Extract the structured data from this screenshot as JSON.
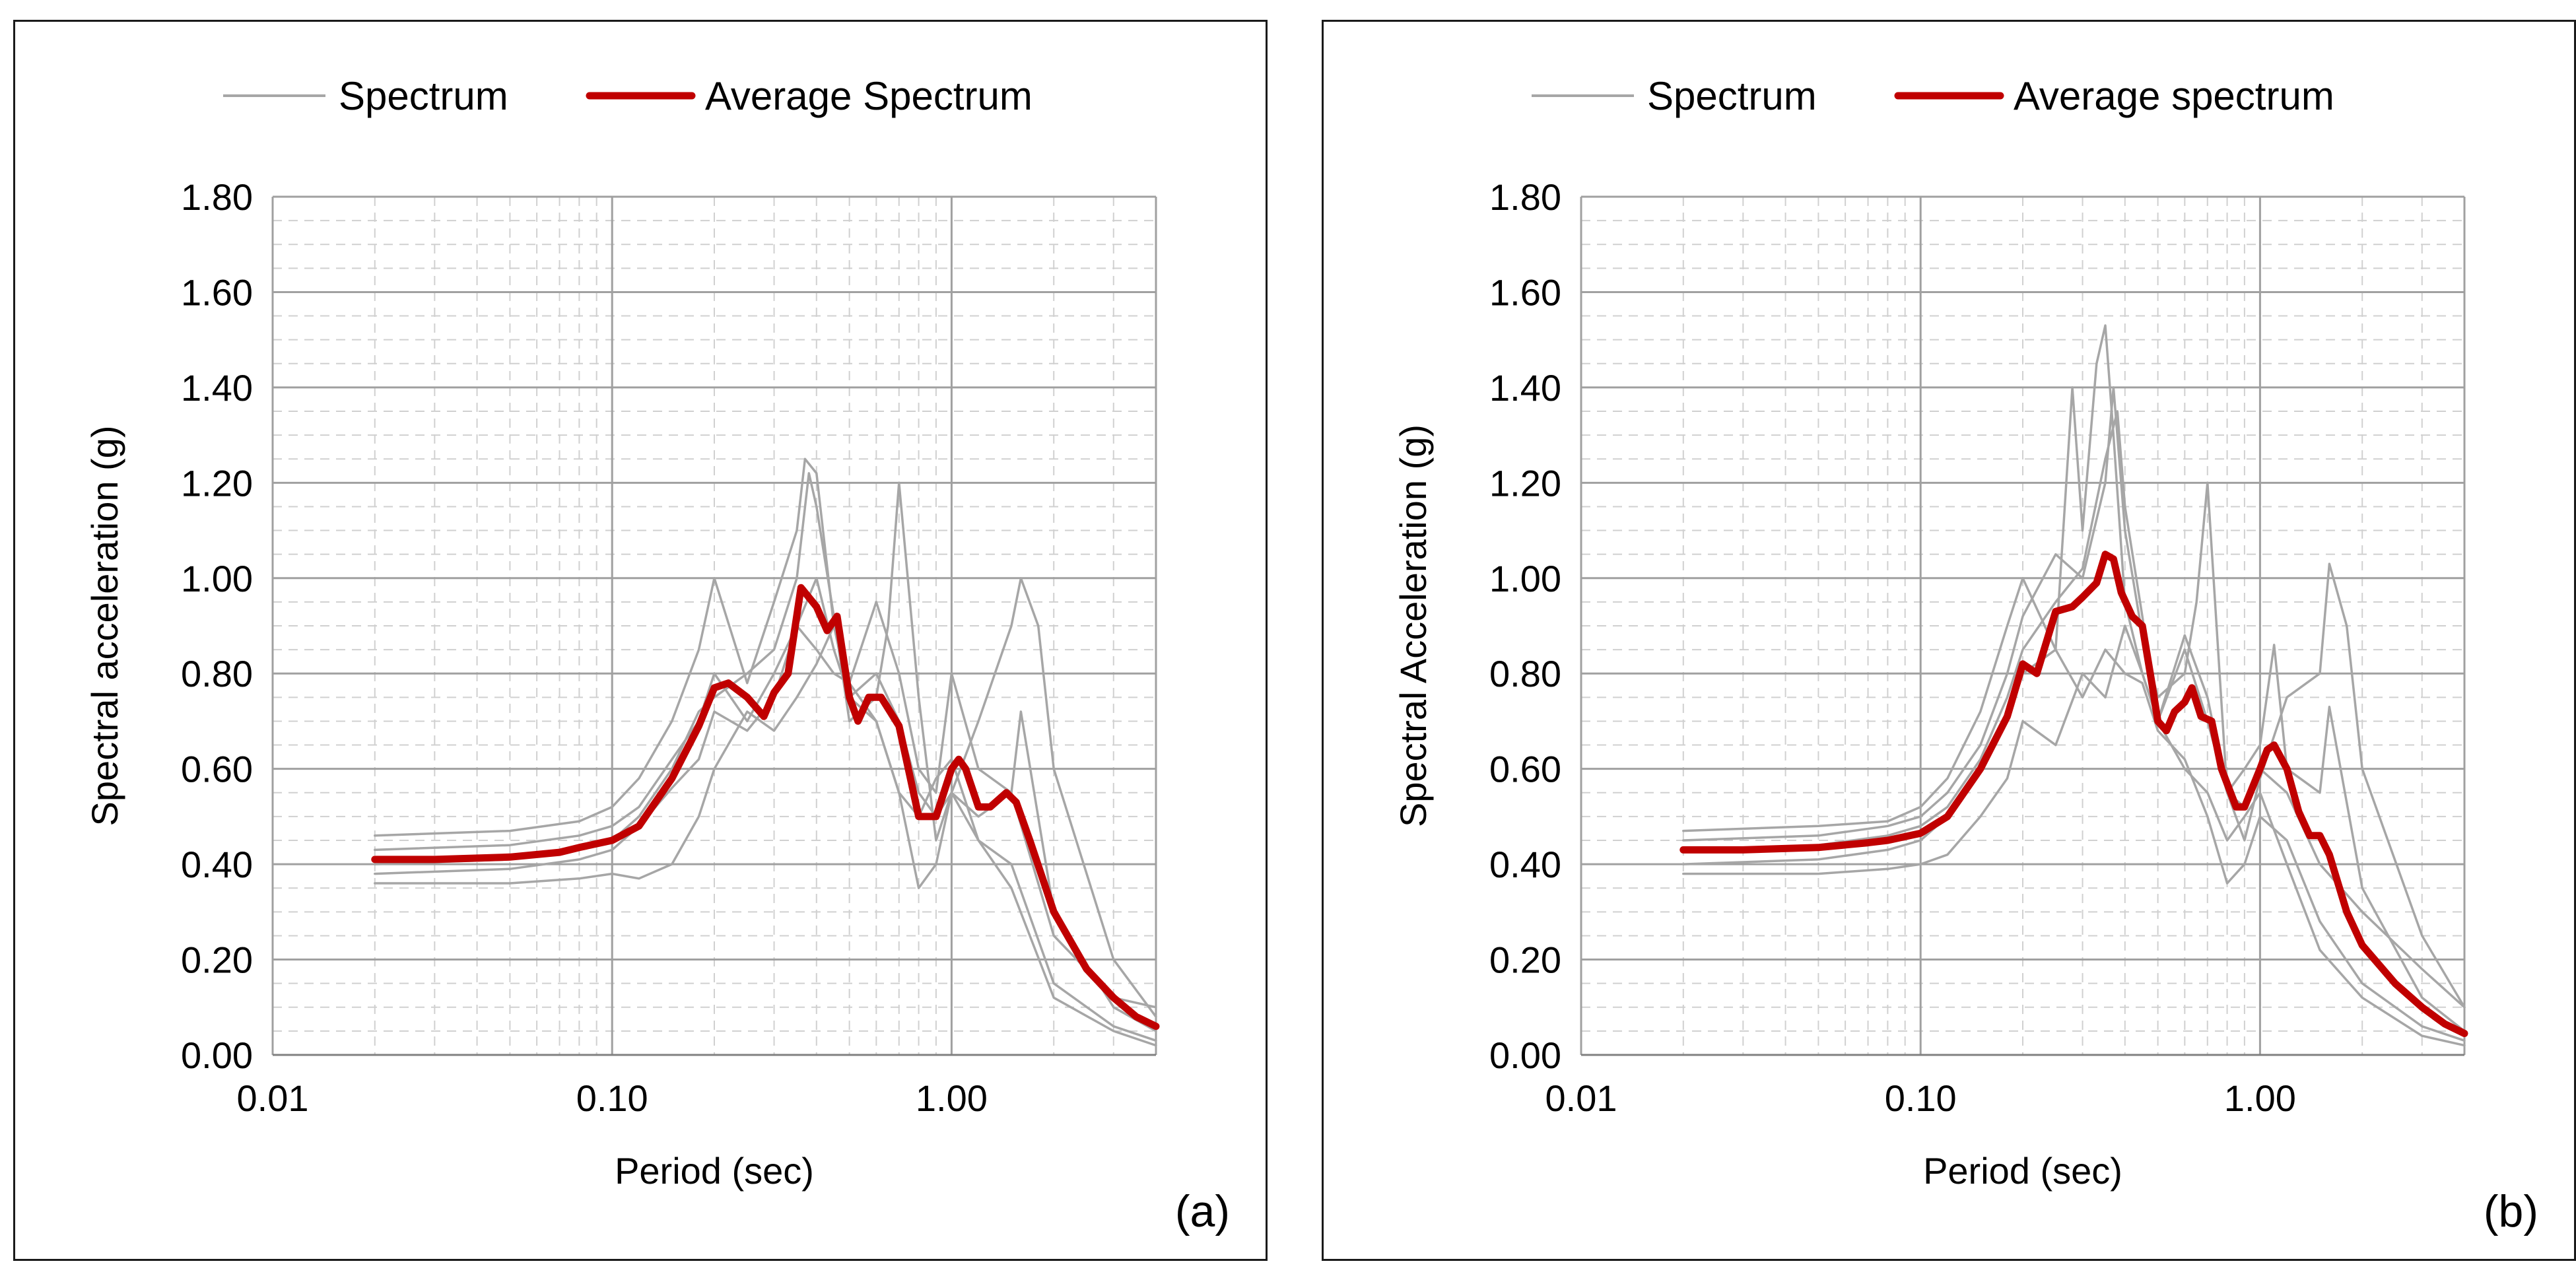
{
  "chart_data": [
    {
      "type": "line",
      "panel_label": "(a)",
      "xlabel": "Period (sec)",
      "ylabel": "Spectral acceleration (g)",
      "x_scale": "log",
      "xlim": [
        0.01,
        4.0
      ],
      "ylim": [
        0,
        1.8
      ],
      "x_ticks": [
        0.01,
        0.1,
        1
      ],
      "x_tick_labels": [
        "0.01",
        "0.10",
        "1.00"
      ],
      "y_ticks": [
        0,
        0.2,
        0.4,
        0.6,
        0.8,
        1.0,
        1.2,
        1.4,
        1.6,
        1.8
      ],
      "y_tick_labels": [
        "0.00",
        "0.20",
        "0.40",
        "0.60",
        "0.80",
        "1.00",
        "1.20",
        "1.40",
        "1.60",
        "1.80"
      ],
      "grid": true,
      "legend": {
        "position": "top",
        "entries": [
          {
            "label": "Spectrum",
            "color": "#a6a6a6"
          },
          {
            "label": "Average Spectrum",
            "color": "#c00000"
          }
        ]
      },
      "series": [
        {
          "role": "spectrum",
          "color": "#a6a6a6",
          "x": [
            0.02,
            0.05,
            0.08,
            0.1,
            0.12,
            0.15,
            0.18,
            0.2,
            0.25,
            0.3,
            0.35,
            0.37,
            0.4,
            0.45,
            0.5,
            0.6,
            0.7,
            0.8,
            0.9,
            1.0,
            1.2,
            1.5,
            2.0,
            3.0,
            4.0
          ],
          "y": [
            0.46,
            0.47,
            0.49,
            0.52,
            0.58,
            0.7,
            0.85,
            1.0,
            0.78,
            0.95,
            1.1,
            1.25,
            1.22,
            0.9,
            0.78,
            0.95,
            0.8,
            0.6,
            0.55,
            0.8,
            0.6,
            0.55,
            0.25,
            0.12,
            0.1
          ]
        },
        {
          "role": "spectrum",
          "color": "#a6a6a6",
          "x": [
            0.02,
            0.05,
            0.08,
            0.1,
            0.12,
            0.15,
            0.18,
            0.2,
            0.25,
            0.3,
            0.35,
            0.4,
            0.45,
            0.5,
            0.6,
            0.7,
            0.8,
            0.9,
            1.0,
            1.2,
            1.5,
            1.6,
            1.8,
            2.0,
            3.0,
            4.0
          ],
          "y": [
            0.43,
            0.44,
            0.46,
            0.48,
            0.52,
            0.62,
            0.7,
            0.8,
            0.7,
            0.8,
            0.9,
            1.0,
            0.85,
            0.75,
            0.8,
            0.7,
            0.55,
            0.5,
            0.55,
            0.7,
            0.9,
            1.0,
            0.9,
            0.6,
            0.2,
            0.08
          ]
        },
        {
          "role": "spectrum",
          "color": "#a6a6a6",
          "x": [
            0.02,
            0.05,
            0.08,
            0.1,
            0.12,
            0.15,
            0.18,
            0.2,
            0.25,
            0.3,
            0.35,
            0.38,
            0.4,
            0.45,
            0.5,
            0.6,
            0.65,
            0.7,
            0.8,
            0.9,
            1.0,
            1.2,
            1.5,
            1.6,
            2.0,
            3.0,
            4.0
          ],
          "y": [
            0.4,
            0.41,
            0.43,
            0.45,
            0.5,
            0.6,
            0.72,
            0.75,
            0.8,
            0.85,
            1.0,
            1.22,
            1.15,
            0.92,
            0.7,
            0.75,
            0.9,
            1.2,
            0.75,
            0.45,
            0.55,
            0.5,
            0.55,
            0.72,
            0.3,
            0.1,
            0.05
          ]
        },
        {
          "role": "spectrum",
          "color": "#a6a6a6",
          "x": [
            0.02,
            0.05,
            0.08,
            0.1,
            0.12,
            0.15,
            0.18,
            0.2,
            0.25,
            0.3,
            0.35,
            0.4,
            0.45,
            0.5,
            0.6,
            0.7,
            0.8,
            0.9,
            1.0,
            1.2,
            1.5,
            2.0,
            3.0,
            4.0
          ],
          "y": [
            0.38,
            0.39,
            0.41,
            0.43,
            0.48,
            0.56,
            0.62,
            0.72,
            0.68,
            0.75,
            0.9,
            0.85,
            0.8,
            0.78,
            0.7,
            0.55,
            0.5,
            0.58,
            0.62,
            0.45,
            0.4,
            0.15,
            0.06,
            0.03
          ]
        },
        {
          "role": "spectrum",
          "color": "#a6a6a6",
          "x": [
            0.02,
            0.05,
            0.08,
            0.1,
            0.12,
            0.15,
            0.18,
            0.2,
            0.25,
            0.3,
            0.35,
            0.4,
            0.45,
            0.5,
            0.6,
            0.7,
            0.8,
            0.9,
            1.0,
            1.2,
            1.5,
            2.0,
            3.0,
            4.0
          ],
          "y": [
            0.36,
            0.36,
            0.37,
            0.38,
            0.37,
            0.4,
            0.5,
            0.6,
            0.72,
            0.68,
            0.75,
            0.82,
            0.9,
            0.75,
            0.7,
            0.55,
            0.35,
            0.4,
            0.55,
            0.45,
            0.35,
            0.12,
            0.05,
            0.02
          ]
        },
        {
          "role": "average",
          "name": "Average Spectrum",
          "color": "#c00000",
          "x": [
            0.02,
            0.03,
            0.05,
            0.07,
            0.08,
            0.1,
            0.12,
            0.15,
            0.18,
            0.2,
            0.22,
            0.25,
            0.28,
            0.3,
            0.33,
            0.36,
            0.4,
            0.43,
            0.46,
            0.5,
            0.53,
            0.57,
            0.62,
            0.7,
            0.8,
            0.9,
            1.0,
            1.05,
            1.1,
            1.2,
            1.3,
            1.45,
            1.55,
            1.7,
            2.0,
            2.5,
            3.0,
            3.5,
            4.0
          ],
          "y": [
            0.41,
            0.41,
            0.415,
            0.425,
            0.435,
            0.45,
            0.48,
            0.58,
            0.69,
            0.77,
            0.78,
            0.75,
            0.71,
            0.76,
            0.8,
            0.98,
            0.94,
            0.89,
            0.92,
            0.75,
            0.7,
            0.75,
            0.75,
            0.69,
            0.5,
            0.5,
            0.6,
            0.62,
            0.6,
            0.52,
            0.52,
            0.55,
            0.53,
            0.45,
            0.3,
            0.18,
            0.12,
            0.08,
            0.06
          ]
        }
      ]
    },
    {
      "type": "line",
      "panel_label": "(b)",
      "xlabel": "Period (sec)",
      "ylabel": "Spectral Acceleration (g)",
      "x_scale": "log",
      "xlim": [
        0.01,
        4.0
      ],
      "ylim": [
        0,
        1.8
      ],
      "x_ticks": [
        0.01,
        0.1,
        1
      ],
      "x_tick_labels": [
        "0.01",
        "0.10",
        "1.00"
      ],
      "y_ticks": [
        0,
        0.2,
        0.4,
        0.6,
        0.8,
        1.0,
        1.2,
        1.4,
        1.6,
        1.8
      ],
      "y_tick_labels": [
        "0.00",
        "0.20",
        "0.40",
        "0.60",
        "0.80",
        "1.00",
        "1.20",
        "1.40",
        "1.60",
        "1.80"
      ],
      "grid": true,
      "legend": {
        "position": "top",
        "entries": [
          {
            "label": "Spectrum",
            "color": "#a6a6a6"
          },
          {
            "label": "Average spectrum",
            "color": "#c00000"
          }
        ]
      },
      "series": [
        {
          "role": "spectrum",
          "color": "#a6a6a6",
          "x": [
            0.02,
            0.05,
            0.08,
            0.1,
            0.12,
            0.15,
            0.18,
            0.2,
            0.25,
            0.28,
            0.3,
            0.33,
            0.35,
            0.37,
            0.4,
            0.45,
            0.5,
            0.6,
            0.7,
            0.8,
            0.9,
            1.0,
            1.2,
            1.5,
            2.0,
            3.0,
            4.0
          ],
          "y": [
            0.47,
            0.48,
            0.49,
            0.52,
            0.58,
            0.72,
            0.9,
            1.0,
            0.85,
            1.4,
            1.1,
            1.45,
            1.53,
            1.3,
            0.95,
            0.8,
            0.7,
            0.88,
            0.75,
            0.55,
            0.52,
            0.6,
            0.55,
            0.4,
            0.3,
            0.18,
            0.1
          ]
        },
        {
          "role": "spectrum",
          "color": "#a6a6a6",
          "x": [
            0.02,
            0.05,
            0.08,
            0.1,
            0.12,
            0.15,
            0.18,
            0.2,
            0.25,
            0.3,
            0.35,
            0.37,
            0.4,
            0.45,
            0.5,
            0.6,
            0.65,
            0.7,
            0.8,
            0.9,
            1.0,
            1.2,
            1.5,
            1.6,
            1.8,
            2.0,
            3.0,
            4.0
          ],
          "y": [
            0.45,
            0.46,
            0.48,
            0.5,
            0.55,
            0.65,
            0.8,
            0.92,
            1.05,
            1.0,
            1.2,
            1.4,
            1.1,
            0.88,
            0.75,
            0.8,
            0.95,
            1.2,
            0.55,
            0.45,
            0.58,
            0.75,
            0.8,
            1.03,
            0.9,
            0.6,
            0.25,
            0.1
          ]
        },
        {
          "role": "spectrum",
          "color": "#a6a6a6",
          "x": [
            0.02,
            0.05,
            0.08,
            0.1,
            0.12,
            0.15,
            0.18,
            0.2,
            0.25,
            0.3,
            0.35,
            0.38,
            0.4,
            0.45,
            0.5,
            0.6,
            0.7,
            0.8,
            0.9,
            1.0,
            1.1,
            1.2,
            1.5,
            1.6,
            2.0,
            3.0,
            4.0
          ],
          "y": [
            0.43,
            0.44,
            0.46,
            0.48,
            0.52,
            0.62,
            0.75,
            0.85,
            0.95,
            1.02,
            1.25,
            1.35,
            1.15,
            0.92,
            0.7,
            0.85,
            0.7,
            0.55,
            0.6,
            0.65,
            0.86,
            0.6,
            0.55,
            0.73,
            0.35,
            0.12,
            0.05
          ]
        },
        {
          "role": "spectrum",
          "color": "#a6a6a6",
          "x": [
            0.02,
            0.05,
            0.08,
            0.1,
            0.12,
            0.15,
            0.18,
            0.2,
            0.25,
            0.3,
            0.35,
            0.4,
            0.45,
            0.5,
            0.6,
            0.7,
            0.8,
            0.9,
            1.0,
            1.2,
            1.5,
            2.0,
            3.0,
            4.0
          ],
          "y": [
            0.4,
            0.41,
            0.43,
            0.45,
            0.5,
            0.6,
            0.7,
            0.8,
            0.85,
            0.75,
            0.85,
            0.8,
            0.78,
            0.68,
            0.62,
            0.5,
            0.36,
            0.4,
            0.5,
            0.45,
            0.28,
            0.15,
            0.06,
            0.03
          ]
        },
        {
          "role": "spectrum",
          "color": "#a6a6a6",
          "x": [
            0.02,
            0.05,
            0.08,
            0.1,
            0.12,
            0.15,
            0.18,
            0.2,
            0.25,
            0.3,
            0.35,
            0.4,
            0.45,
            0.5,
            0.6,
            0.7,
            0.8,
            0.9,
            1.0,
            1.2,
            1.5,
            2.0,
            3.0,
            4.0
          ],
          "y": [
            0.38,
            0.38,
            0.39,
            0.4,
            0.42,
            0.5,
            0.58,
            0.7,
            0.65,
            0.8,
            0.75,
            0.9,
            0.8,
            0.7,
            0.6,
            0.55,
            0.45,
            0.5,
            0.55,
            0.4,
            0.22,
            0.12,
            0.04,
            0.02
          ]
        },
        {
          "role": "average",
          "name": "Average spectrum",
          "color": "#c00000",
          "x": [
            0.02,
            0.03,
            0.05,
            0.07,
            0.08,
            0.1,
            0.12,
            0.15,
            0.18,
            0.2,
            0.22,
            0.25,
            0.28,
            0.3,
            0.33,
            0.35,
            0.37,
            0.39,
            0.42,
            0.45,
            0.48,
            0.5,
            0.53,
            0.56,
            0.6,
            0.63,
            0.67,
            0.72,
            0.77,
            0.85,
            0.9,
            1.0,
            1.05,
            1.1,
            1.2,
            1.3,
            1.4,
            1.5,
            1.6,
            1.8,
            2.0,
            2.5,
            3.0,
            3.5,
            4.0
          ],
          "y": [
            0.43,
            0.43,
            0.435,
            0.445,
            0.45,
            0.465,
            0.5,
            0.6,
            0.71,
            0.82,
            0.8,
            0.93,
            0.94,
            0.96,
            0.99,
            1.05,
            1.04,
            0.97,
            0.92,
            0.9,
            0.78,
            0.7,
            0.68,
            0.72,
            0.74,
            0.77,
            0.71,
            0.7,
            0.6,
            0.52,
            0.52,
            0.6,
            0.64,
            0.65,
            0.6,
            0.51,
            0.46,
            0.46,
            0.42,
            0.3,
            0.23,
            0.15,
            0.1,
            0.065,
            0.045
          ]
        }
      ]
    }
  ]
}
